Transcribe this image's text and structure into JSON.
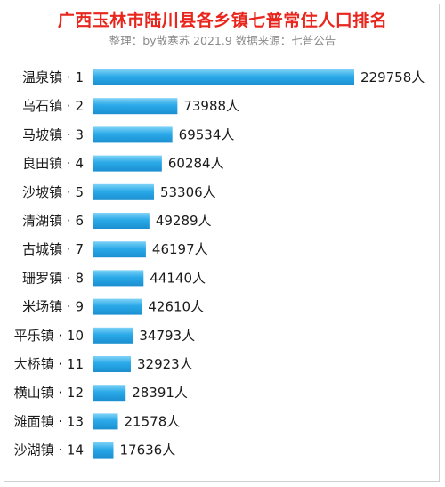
{
  "header": {
    "title": "广西玉林市陆川县各乡镇七普常住人口排名",
    "subtitle": "整理：by散寒苏  2021.9  数据来源：七普公告"
  },
  "chart_data": {
    "type": "bar",
    "orientation": "horizontal",
    "title": "广西玉林市陆川县各乡镇七普常住人口排名",
    "subtitle": "整理：by散寒苏  2021.9  数据来源：七普公告",
    "categories": [
      "温泉镇 · 1",
      "乌石镇 · 2",
      "马坡镇 · 3",
      "良田镇 · 4",
      "沙坡镇 · 5",
      "清湖镇 · 6",
      "古城镇 · 7",
      "珊罗镇 · 8",
      "米场镇 · 9",
      "平乐镇 · 10",
      "大桥镇 · 11",
      "横山镇 · 12",
      "滩面镇 · 13",
      "沙湖镇 · 14"
    ],
    "values": [
      229758,
      73988,
      69534,
      60284,
      53306,
      49289,
      46197,
      44140,
      42610,
      34793,
      32923,
      28391,
      21578,
      17636
    ],
    "value_labels": [
      "229758人",
      "73988人",
      "69534人",
      "60284人",
      "53306人",
      "49289人",
      "46197人",
      "44140人",
      "42610人",
      "34793人",
      "32923人",
      "28391人",
      "21578人",
      "17636人"
    ],
    "unit": "人",
    "bar_color": "#2aa9e8",
    "grid": false,
    "legend": "none"
  }
}
